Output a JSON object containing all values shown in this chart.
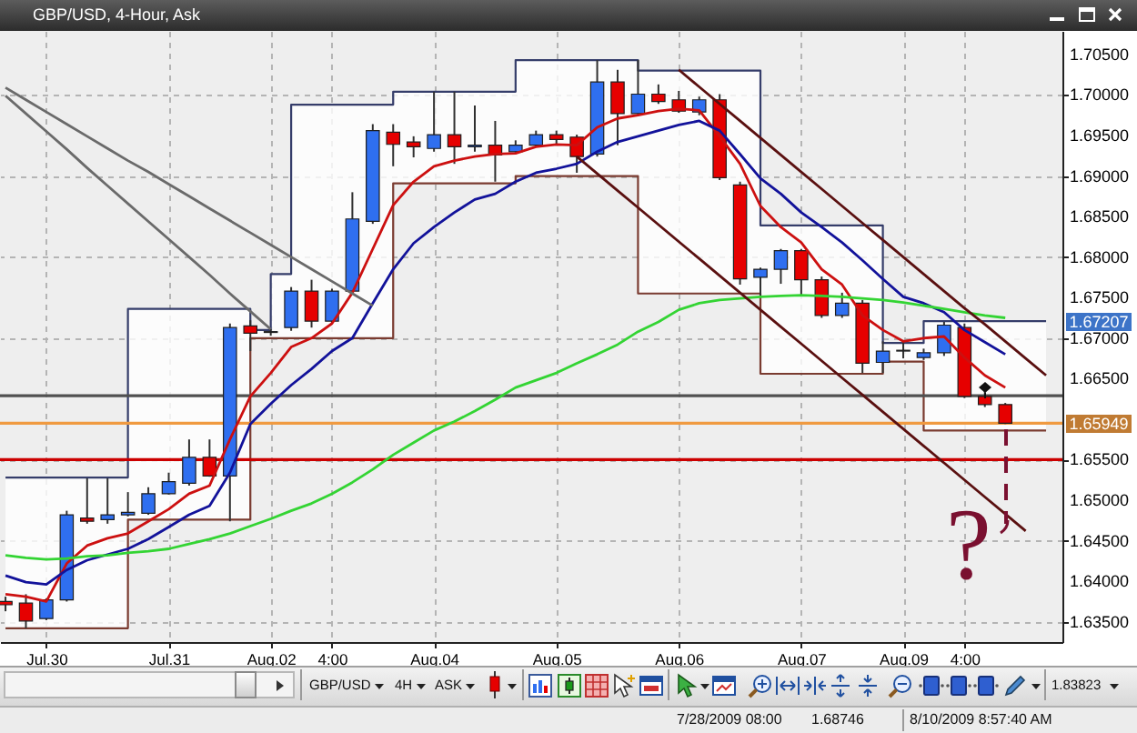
{
  "chart_data": {
    "type": "candlestick",
    "title": "GBP/USD, 4-Hour, Ask",
    "categories": [
      null,
      null,
      "Jul.30",
      null,
      null,
      null,
      null,
      null,
      "Jul.31",
      null,
      null,
      null,
      null,
      "Aug.02",
      null,
      null,
      "4:00",
      null,
      null,
      null,
      null,
      "Aug.04",
      null,
      null,
      null,
      null,
      null,
      "Aug.05",
      null,
      null,
      null,
      null,
      null,
      "Aug.06",
      null,
      null,
      null,
      null,
      null,
      "Aug.07",
      null,
      null,
      null,
      null,
      "Aug.09",
      null,
      null,
      "4:00",
      null,
      null,
      null,
      null
    ],
    "ohlc": [
      [
        1.6375,
        1.6381,
        1.6363,
        1.6371
      ],
      [
        1.6373,
        1.6384,
        1.6342,
        1.6351
      ],
      [
        1.6354,
        1.6379,
        1.6352,
        1.6377
      ],
      [
        1.6377,
        1.6487,
        1.6375,
        1.6482
      ],
      [
        1.6478,
        1.6527,
        1.6471,
        1.6474
      ],
      [
        1.6476,
        1.6527,
        1.6471,
        1.6482
      ],
      [
        1.6482,
        1.651,
        1.648,
        1.6485
      ],
      [
        1.6484,
        1.6516,
        1.6482,
        1.6508
      ],
      [
        1.6508,
        1.6534,
        1.6507,
        1.6523
      ],
      [
        1.6521,
        1.6575,
        1.6518,
        1.6553
      ],
      [
        1.6553,
        1.6575,
        1.6529,
        1.653
      ],
      [
        1.653,
        1.6718,
        1.6474,
        1.6713
      ],
      [
        1.6715,
        1.6722,
        1.6684,
        1.6706
      ],
      [
        1.6707,
        1.6711,
        1.6703,
        1.6708
      ],
      [
        1.6713,
        1.6763,
        1.6709,
        1.6758
      ],
      [
        1.6758,
        1.6772,
        1.6713,
        1.6721
      ],
      [
        1.6721,
        1.6761,
        1.6718,
        1.6758
      ],
      [
        1.6758,
        1.688,
        1.6754,
        1.6847
      ],
      [
        1.6844,
        1.6964,
        1.6841,
        1.6956
      ],
      [
        1.6954,
        1.6964,
        1.6912,
        1.6939
      ],
      [
        1.6942,
        1.6949,
        1.6923,
        1.6936
      ],
      [
        1.6934,
        1.7004,
        1.693,
        1.6951
      ],
      [
        1.6951,
        1.7004,
        1.6915,
        1.6936
      ],
      [
        1.6936,
        1.6987,
        1.693,
        1.6938
      ],
      [
        1.6938,
        1.6968,
        1.6893,
        1.6926
      ],
      [
        1.693,
        1.6944,
        1.6929,
        1.6938
      ],
      [
        1.6938,
        1.6956,
        1.6936,
        1.6951
      ],
      [
        1.6951,
        1.6956,
        1.6938,
        1.6945
      ],
      [
        1.6948,
        1.6951,
        1.6904,
        1.6924
      ],
      [
        1.6927,
        1.7043,
        1.6924,
        1.7016
      ],
      [
        1.7016,
        1.7031,
        1.6938,
        1.6977
      ],
      [
        1.6977,
        1.7043,
        1.6974,
        1.7001
      ],
      [
        1.7001,
        1.7013,
        1.6989,
        1.6992
      ],
      [
        1.6994,
        1.7005,
        1.6978,
        1.698
      ],
      [
        1.6979,
        1.6998,
        1.6975,
        1.6994
      ],
      [
        1.6994,
        1.7001,
        1.6895,
        1.6898
      ],
      [
        1.6889,
        1.6893,
        1.6766,
        1.6773
      ],
      [
        1.6775,
        1.6787,
        1.6751,
        1.6785
      ],
      [
        1.6785,
        1.681,
        1.6767,
        1.6808
      ],
      [
        1.6808,
        1.681,
        1.6752,
        1.6772
      ],
      [
        1.6772,
        1.6776,
        1.6725,
        1.6728
      ],
      [
        1.6728,
        1.6756,
        1.6725,
        1.6743
      ],
      [
        1.6743,
        1.6747,
        1.6657,
        1.6669
      ],
      [
        1.667,
        1.6696,
        1.6657,
        1.6684
      ],
      [
        1.6684,
        1.6696,
        1.6675,
        1.6685
      ],
      [
        1.6676,
        1.6687,
        1.6673,
        1.6682
      ],
      [
        1.6682,
        1.672,
        1.6678,
        1.6716
      ],
      [
        1.6713,
        1.6718,
        1.6626,
        1.6628
      ],
      [
        1.6628,
        1.6639,
        1.6615,
        1.6618
      ],
      [
        1.6618,
        1.662,
        1.6594,
        1.65949
      ],
      null,
      null
    ],
    "colors": [
      "#e60000",
      "#e60000",
      "#2f6ff0",
      "#2f6ff0",
      "#e60000",
      "#2f6ff0",
      "#2f6ff0",
      "#2f6ff0",
      "#2f6ff0",
      "#2f6ff0",
      "#e60000",
      "#2f6ff0",
      "#e60000",
      "#2f6ff0",
      "#2f6ff0",
      "#e60000",
      "#2f6ff0",
      "#2f6ff0",
      "#2f6ff0",
      "#e60000",
      "#e60000",
      "#2f6ff0",
      "#e60000",
      "#2f6ff0",
      "#e60000",
      "#2f6ff0",
      "#2f6ff0",
      "#e60000",
      "#e60000",
      "#2f6ff0",
      "#e60000",
      "#2f6ff0",
      "#e60000",
      "#e60000",
      "#2f6ff0",
      "#e60000",
      "#e60000",
      "#2f6ff0",
      "#2f6ff0",
      "#e60000",
      "#e60000",
      "#2f6ff0",
      "#e60000",
      "#2f6ff0",
      "#2f6ff0",
      "#2f6ff0",
      "#2f6ff0",
      "#e60000",
      "#e60000",
      "#e60000",
      null,
      null
    ],
    "series": [
      {
        "type": "step",
        "color": "#353d6a",
        "values": [
          1.6528,
          1.6528,
          1.6528,
          1.6528,
          1.6528,
          1.6528,
          1.6736,
          1.6736,
          1.6736,
          1.6736,
          1.6736,
          1.6736,
          1.671,
          1.6779,
          1.6988,
          1.6988,
          1.6988,
          1.6988,
          1.6988,
          1.7004,
          1.7004,
          1.7004,
          1.7004,
          1.7004,
          1.7004,
          1.7043,
          1.7043,
          1.7043,
          1.7043,
          1.7043,
          1.7043,
          1.703,
          1.703,
          1.703,
          1.703,
          1.703,
          1.703,
          1.6839,
          1.6839,
          1.6839,
          1.6839,
          1.6839,
          1.6839,
          1.6694,
          1.6694,
          1.6721,
          1.6721,
          1.6721,
          1.6721,
          1.6721,
          1.6721,
          1.6721
        ],
        "lower": [
          1.6342,
          1.6342,
          1.6342,
          1.6342,
          1.6342,
          1.6342,
          1.6476,
          1.6476,
          1.6476,
          1.6476,
          1.6476,
          1.6476,
          1.67,
          1.67,
          1.67,
          1.67,
          1.67,
          1.67,
          1.67,
          1.6891,
          1.6891,
          1.6891,
          1.6891,
          1.6891,
          1.6891,
          1.69,
          1.69,
          1.69,
          1.69,
          1.69,
          1.69,
          1.6755,
          1.6755,
          1.6755,
          1.6755,
          1.6755,
          1.6755,
          1.6656,
          1.6656,
          1.6656,
          1.6656,
          1.6656,
          1.6656,
          1.6671,
          1.6671,
          1.6586,
          1.6586,
          1.6586,
          1.6586,
          1.6586,
          1.6586,
          1.6586
        ],
        "upper": [
          1.6528,
          1.6528,
          1.6528,
          1.6528,
          1.6528,
          1.6528,
          1.6736,
          1.6736,
          1.6736,
          1.6736,
          1.6736,
          1.6736,
          1.671,
          1.6779,
          1.6988,
          1.6988,
          1.6988,
          1.6988,
          1.6988,
          1.7004,
          1.7004,
          1.7004,
          1.7004,
          1.7004,
          1.7004,
          1.7043,
          1.7043,
          1.7043,
          1.7043,
          1.7043,
          1.7043,
          1.703,
          1.703,
          1.703,
          1.703,
          1.703,
          1.703,
          1.6839,
          1.6839,
          1.6839,
          1.6839,
          1.6839,
          1.6839,
          1.6694,
          1.6694,
          1.6721,
          1.6721,
          1.6721,
          1.6721,
          1.6721,
          1.6721,
          1.6721
        ]
      },
      {
        "type": "step",
        "color": "#7a3b30",
        "values": [
          1.6342,
          1.6342,
          1.6342,
          1.6342,
          1.6342,
          1.6342,
          1.6476,
          1.6476,
          1.6476,
          1.6476,
          1.6476,
          1.6476,
          1.67,
          1.67,
          1.67,
          1.67,
          1.67,
          1.67,
          1.67,
          1.6891,
          1.6891,
          1.6891,
          1.6891,
          1.6891,
          1.6891,
          1.69,
          1.69,
          1.69,
          1.69,
          1.69,
          1.69,
          1.6755,
          1.6755,
          1.6755,
          1.6755,
          1.6755,
          1.6755,
          1.6656,
          1.6656,
          1.6656,
          1.6656,
          1.6656,
          1.6656,
          1.6671,
          1.6671,
          1.6586,
          1.6586,
          1.6586,
          1.6586,
          1.6586,
          1.6586,
          1.6586
        ]
      },
      {
        "type": "line",
        "color": "#cc1010",
        "values": [
          1.6384,
          1.6381,
          1.6375,
          1.6422,
          1.6444,
          1.6453,
          1.6459,
          1.6474,
          1.6489,
          1.6508,
          1.6518,
          1.6575,
          1.6628,
          1.6657,
          1.6689,
          1.67,
          1.6718,
          1.6756,
          1.681,
          1.6864,
          1.6893,
          1.6912,
          1.6919,
          1.6924,
          1.6927,
          1.6928,
          1.6936,
          1.6939,
          1.6938,
          1.696,
          1.6971,
          1.6975,
          1.698,
          1.6983,
          1.6981,
          1.6949,
          1.6915,
          1.6863,
          1.6837,
          1.6818,
          1.6785,
          1.6766,
          1.6728,
          1.671,
          1.6696,
          1.67,
          1.6702,
          1.6676,
          1.6654,
          1.6639,
          null,
          null
        ]
      },
      {
        "type": "line",
        "color": "#12129a",
        "values": [
          1.6407,
          1.6399,
          1.6396,
          1.6414,
          1.6426,
          1.6433,
          1.644,
          1.6452,
          1.6467,
          1.6482,
          1.6493,
          1.6534,
          1.6594,
          1.6619,
          1.6642,
          1.6662,
          1.6684,
          1.67,
          1.6743,
          1.6785,
          1.6817,
          1.6837,
          1.6855,
          1.6871,
          1.6878,
          1.6893,
          1.6904,
          1.6909,
          1.6915,
          1.693,
          1.6942,
          1.6949,
          1.6956,
          1.6963,
          1.6968,
          1.6956,
          1.6927,
          1.6897,
          1.6878,
          1.6855,
          1.6837,
          1.6818,
          1.6796,
          1.6773,
          1.6751,
          1.6743,
          1.6732,
          1.671,
          1.6695,
          1.668,
          null,
          null
        ]
      },
      {
        "type": "line",
        "color": "#33d433",
        "values": [
          1.6432,
          1.6429,
          1.6427,
          1.6428,
          1.6431,
          1.6432,
          1.6435,
          1.6437,
          1.644,
          1.6446,
          1.6452,
          1.6459,
          1.6468,
          1.6477,
          1.6487,
          1.6496,
          1.6508,
          1.6522,
          1.6538,
          1.6556,
          1.6571,
          1.6586,
          1.6597,
          1.661,
          1.6624,
          1.6639,
          1.6648,
          1.6657,
          1.6669,
          1.668,
          1.6692,
          1.6708,
          1.672,
          1.6735,
          1.6743,
          1.6747,
          1.6749,
          1.6751,
          1.6752,
          1.6753,
          1.6752,
          1.6751,
          1.6749,
          1.6747,
          1.6744,
          1.674,
          1.6736,
          1.6732,
          1.6728,
          1.6725,
          null,
          null
        ]
      },
      {
        "type": "line",
        "color": "#6a6a6a",
        "values": [
          1.7009,
          1.6994,
          1.6979,
          1.6964,
          1.6949,
          1.6934,
          1.6919,
          1.6905,
          1.689,
          1.6875,
          1.686,
          1.6845,
          1.683,
          1.6815,
          1.68,
          1.6785,
          1.677,
          1.6755,
          1.674,
          null,
          null,
          null,
          null,
          null,
          null,
          null,
          null,
          null,
          null,
          null,
          null,
          null,
          null,
          null,
          null,
          null,
          null,
          null,
          null,
          null,
          null,
          null,
          null,
          null,
          null,
          null,
          null,
          null,
          null,
          null,
          null,
          null
        ]
      },
      {
        "type": "line",
        "color": "#6a6a6a",
        "values": [
          1.6999,
          1.6977,
          1.6955,
          1.6933,
          1.691,
          1.6888,
          1.6866,
          1.6844,
          1.6822,
          1.68,
          1.6778,
          1.6755,
          1.6733,
          1.6711,
          null,
          null,
          null,
          null,
          null,
          null,
          null,
          null,
          null,
          null,
          null,
          null,
          null,
          null,
          null,
          null,
          null,
          null,
          null,
          null,
          null,
          null,
          null,
          null,
          null,
          null,
          null,
          null,
          null,
          null,
          null,
          null,
          null,
          null,
          null,
          null,
          null,
          null
        ]
      },
      {
        "type": "line",
        "color": "#5a1010",
        "values": [
          null,
          null,
          null,
          null,
          null,
          null,
          null,
          null,
          null,
          null,
          null,
          null,
          null,
          null,
          null,
          null,
          null,
          null,
          null,
          null,
          null,
          null,
          null,
          null,
          null,
          null,
          null,
          null,
          null,
          null,
          null,
          null,
          null,
          1.7031,
          1.701,
          1.6989,
          1.6968,
          1.6947,
          1.6926,
          1.6905,
          1.6884,
          1.6863,
          1.6842,
          1.6821,
          1.68,
          1.6779,
          1.6758,
          1.6737,
          1.6717,
          1.6696,
          1.6675,
          1.6654
        ]
      },
      {
        "type": "line",
        "color": "#5a1010",
        "values": [
          null,
          null,
          null,
          null,
          null,
          null,
          null,
          null,
          null,
          null,
          null,
          null,
          null,
          null,
          null,
          null,
          null,
          null,
          null,
          null,
          null,
          null,
          null,
          null,
          null,
          null,
          null,
          null,
          1.6924,
          1.6903,
          1.6882,
          1.6861,
          1.684,
          1.6819,
          1.6798,
          1.6777,
          1.6756,
          1.6735,
          1.6714,
          1.6693,
          1.6672,
          1.6651,
          1.663,
          1.6609,
          1.6588,
          1.6567,
          1.6546,
          1.6525,
          1.6504,
          1.6483,
          1.6462,
          null
        ]
      }
    ],
    "ref_lines": [
      {
        "axis": "y",
        "value": 1.6629,
        "color": "#505050"
      },
      {
        "axis": "y",
        "value": 1.65949,
        "label": "1.65949",
        "color": "#f09a40"
      },
      {
        "axis": "y",
        "value": 1.655,
        "color": "#cc0000"
      }
    ],
    "ylim": [
      1.6325,
      1.7079
    ],
    "yticks": [
      {
        "value": 1.635,
        "label": "1.63500"
      },
      {
        "value": 1.64,
        "label": "1.64000"
      },
      {
        "value": 1.645,
        "label": "1.64500"
      },
      {
        "value": 1.65,
        "label": "1.65000"
      },
      {
        "value": 1.655,
        "label": "1.65500"
      },
      {
        "value": 1.665,
        "label": "1.66500"
      },
      {
        "value": 1.67,
        "label": "1.67000"
      },
      {
        "value": 1.675,
        "label": "1.67500"
      },
      {
        "value": 1.68,
        "label": "1.68000"
      },
      {
        "value": 1.685,
        "label": "1.68500"
      },
      {
        "value": 1.69,
        "label": "1.69000"
      },
      {
        "value": 1.695,
        "label": "1.69500"
      },
      {
        "value": 1.7,
        "label": "1.70000"
      },
      {
        "value": 1.705,
        "label": "1.70500"
      }
    ],
    "grid": true,
    "annotations": [
      "?",
      "1.67207",
      "GBP/USD",
      "4H",
      "ASK",
      "1.83823",
      "7/28/2009 08:00",
      "1.68746",
      "8/10/2009 8:57:40 AM"
    ]
  }
}
